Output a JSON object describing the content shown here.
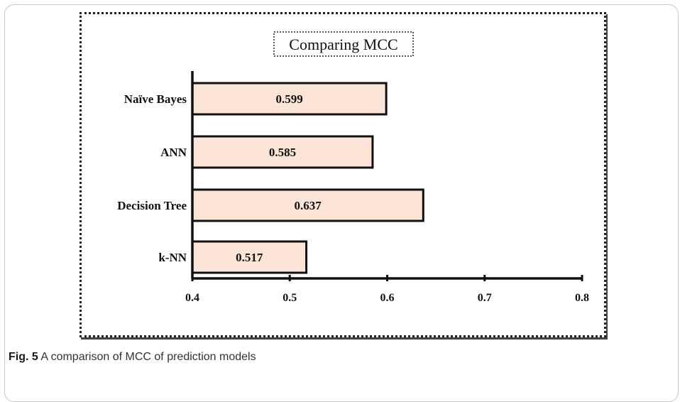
{
  "caption": {
    "label": "Fig. 5",
    "text": "A comparison of MCC of prediction models"
  },
  "chart_data": {
    "type": "bar",
    "orientation": "horizontal",
    "title": "Comparing MCC",
    "xlabel": "",
    "ylabel": "",
    "categories": [
      "Naïve Bayes",
      "ANN",
      "Decision Tree",
      "k-NN"
    ],
    "values": [
      0.599,
      0.585,
      0.637,
      0.517
    ],
    "value_labels": [
      "0.599",
      "0.585",
      "0.637",
      "0.517"
    ],
    "xlim": [
      0.4,
      0.8
    ],
    "xticks": [
      0.4,
      0.5,
      0.6,
      0.7,
      0.8
    ],
    "xtick_labels": [
      "0.4",
      "0.5",
      "0.6",
      "0.7",
      "0.8"
    ],
    "grid": false,
    "colors": {
      "bar_fill": "#fce4d6",
      "bar_stroke": "#111111",
      "axis": "#111111"
    }
  }
}
